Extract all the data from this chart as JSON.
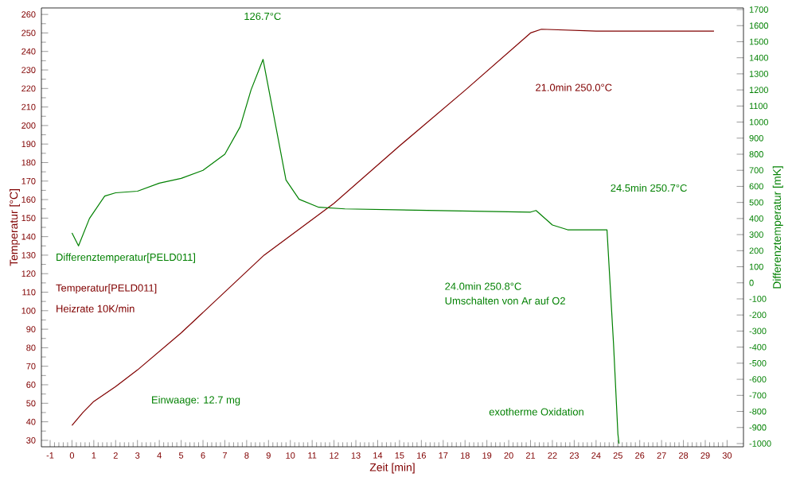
{
  "chart_data": {
    "type": "line",
    "xlabel": "Zeit  [min]",
    "ylabel": "Temperatur  [°C]",
    "y2label": "Differenztemperatur  [mK]",
    "xlim": [
      -1.4,
      30.75
    ],
    "ylim": [
      26.5,
      263.5
    ],
    "y2lim": [
      -1020,
      1710
    ],
    "xticks": [
      -1,
      0,
      1,
      2,
      3,
      4,
      5,
      6,
      7,
      8,
      9,
      10,
      11,
      12,
      13,
      14,
      15,
      16,
      17,
      18,
      19,
      20,
      21,
      22,
      23,
      24,
      25,
      26,
      27,
      28,
      29,
      30
    ],
    "yticks": [
      30,
      40,
      50,
      60,
      70,
      80,
      90,
      100,
      110,
      120,
      130,
      140,
      150,
      160,
      170,
      180,
      190,
      200,
      210,
      220,
      230,
      240,
      250,
      260
    ],
    "y2ticks": [
      -1000,
      -900,
      -800,
      -700,
      -600,
      -500,
      -400,
      -300,
      -200,
      -100,
      0,
      100,
      200,
      300,
      400,
      500,
      600,
      700,
      800,
      900,
      1000,
      1100,
      1200,
      1300,
      1400,
      1500,
      1600,
      1700
    ],
    "grid": false,
    "marker": "none",
    "line_style": "solid",
    "series": [
      {
        "name": "Temperatur[PELD011]",
        "color": "#800000",
        "x": [
          0,
          0.5,
          1,
          2,
          3,
          5,
          8.8,
          12,
          15,
          18,
          21,
          21.5,
          24,
          26.5,
          29.4
        ],
        "values": [
          38,
          45,
          51,
          59,
          68,
          88,
          130,
          158,
          189,
          219,
          250,
          252,
          251,
          251,
          251
        ]
      },
      {
        "name": "Differenztemperatur[PELD011]",
        "color": "#008000",
        "axis": "y2",
        "x": [
          0,
          0.3,
          0.8,
          1.5,
          2,
          3,
          4,
          5,
          6,
          7,
          7.7,
          8.2,
          8.75,
          9.2,
          9.8,
          10.4,
          11.3,
          12.5,
          21,
          21.25,
          22,
          22.7,
          24.5,
          24.8,
          25,
          25.05
        ],
        "values": [
          310,
          230,
          400,
          540,
          560,
          570,
          620,
          650,
          700,
          800,
          970,
          1200,
          1390,
          1070,
          640,
          520,
          470,
          460,
          440,
          450,
          360,
          330,
          330,
          -380,
          -940,
          -1000
        ]
      }
    ],
    "annotations": [
      "126.7°C",
      "21.0min  250.0°C",
      "24.5min  250.7°C",
      "24.0min  250.8°C",
      "Umschalten von Ar auf O2",
      "Heizrate 10K/min",
      "Einwaage: 12.7 mg",
      "exotherme Oxidation"
    ]
  }
}
